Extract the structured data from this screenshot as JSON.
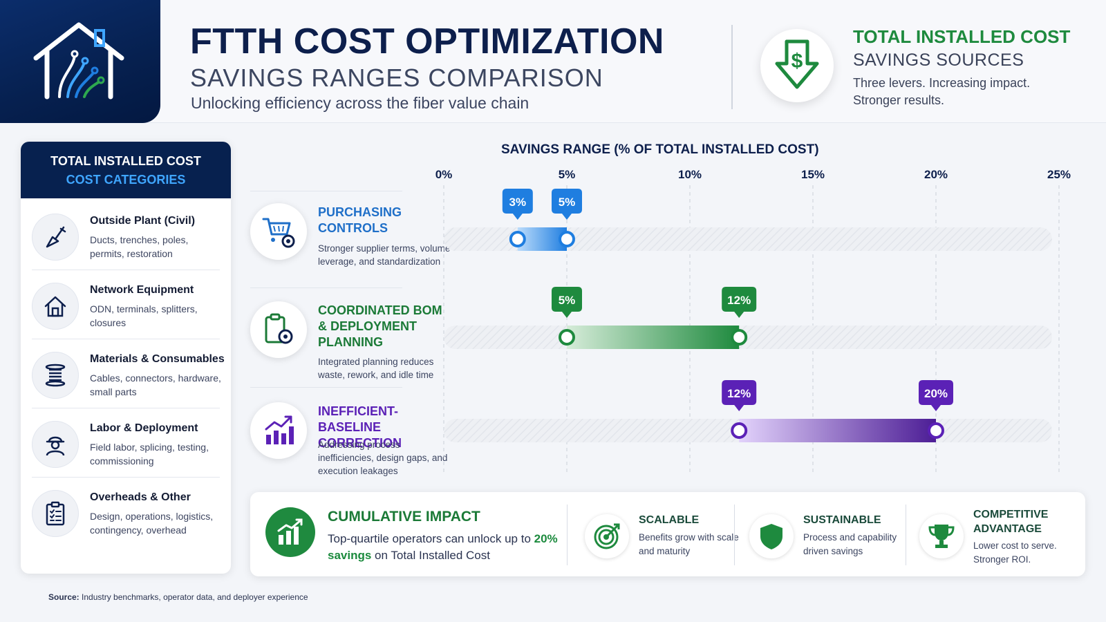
{
  "header": {
    "title": "FTTH COST OPTIMIZATION",
    "subtitle": "SAVINGS RANGES COMPARISON",
    "tagline": "Unlocking efficiency across the fiber value chain",
    "sources_title": "TOTAL INSTALLED COST",
    "sources_subtitle": "SAVINGS SOURCES",
    "sources_desc": "Three levers. Increasing impact. Stronger results."
  },
  "colors": {
    "navy": "#07214f",
    "blue": "#1f7ee0",
    "green": "#1e8a3e",
    "purple": "#5b21b6"
  },
  "categories_panel": {
    "title_line1": "TOTAL INSTALLED COST",
    "title_line2": "COST CATEGORIES",
    "items": [
      {
        "name": "Outside Plant (Civil)",
        "desc": "Ducts, trenches, poles, permits, restoration",
        "icon": "shovel-icon"
      },
      {
        "name": "Network Equipment",
        "desc": "ODN, terminals, splitters, closures",
        "icon": "house-icon"
      },
      {
        "name": "Materials & Consumables",
        "desc": "Cables, connectors, hardware, small parts",
        "icon": "cable-spool-icon"
      },
      {
        "name": "Labor & Deployment",
        "desc": "Field labor, splicing, testing, commissioning",
        "icon": "worker-icon"
      },
      {
        "name": "Overheads & Other",
        "desc": "Design, operations, logistics, contingency, overhead",
        "icon": "clipboard-icon"
      }
    ]
  },
  "levers": [
    {
      "title": "PURCHASING CONTROLS",
      "desc": "Stronger supplier terms, volume leverage, and standardization",
      "icon": "cart-gear-icon"
    },
    {
      "title": "COORDINATED BOM & DEPLOYMENT PLANNING",
      "desc": "Integrated planning reduces waste, rework, and idle time",
      "icon": "clipboard-gear-icon"
    },
    {
      "title": "INEFFICIENT-BASELINE CORRECTION",
      "desc": "Addressing process inefficiencies, design gaps, and execution leakages",
      "icon": "growth-chart-icon"
    }
  ],
  "chart_data": {
    "type": "range-bar",
    "title": "SAVINGS RANGE (% OF TOTAL INSTALLED COST)",
    "xlim": [
      0,
      25
    ],
    "x_ticks": [
      "0%",
      "5%",
      "10%",
      "15%",
      "20%",
      "25%"
    ],
    "x_tick_values": [
      0,
      5,
      10,
      15,
      20,
      25
    ],
    "series": [
      {
        "name": "PURCHASING CONTROLS",
        "low": 3,
        "high": 5,
        "low_label": "3%",
        "high_label": "5%",
        "color": "#1f7ee0"
      },
      {
        "name": "COORDINATED BOM & DEPLOYMENT PLANNING",
        "low": 5,
        "high": 12,
        "low_label": "5%",
        "high_label": "12%",
        "color": "#1e8a3e"
      },
      {
        "name": "INEFFICIENT-BASELINE CORRECTION",
        "low": 12,
        "high": 20,
        "low_label": "12%",
        "high_label": "20%",
        "color": "#5b21b6"
      }
    ],
    "grid": true
  },
  "impact": {
    "title": "CUMULATIVE IMPACT",
    "text_before": "Top-quartile operators can unlock up to ",
    "highlight": "20% savings",
    "text_after": " on Total Installed Cost",
    "features": [
      {
        "title": "SCALABLE",
        "desc": "Benefits grow with scale and maturity",
        "icon": "target-icon"
      },
      {
        "title": "SUSTAINABLE",
        "desc": "Process and capability driven savings",
        "icon": "shield-icon"
      },
      {
        "title": "COMPETITIVE ADVANTAGE",
        "desc": "Lower cost to serve. Stronger ROI.",
        "icon": "trophy-icon"
      }
    ]
  },
  "footer": {
    "source_label": "Source:",
    "source_text": "Industry benchmarks, operator data, and deployer experience"
  }
}
